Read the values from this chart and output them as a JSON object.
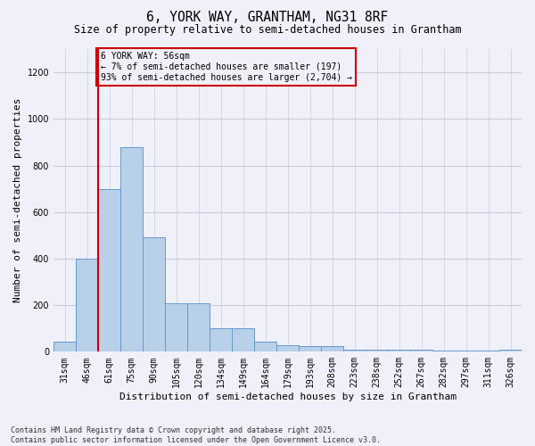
{
  "title": "6, YORK WAY, GRANTHAM, NG31 8RF",
  "subtitle": "Size of property relative to semi-detached houses in Grantham",
  "xlabel": "Distribution of semi-detached houses by size in Grantham",
  "ylabel": "Number of semi-detached properties",
  "footnote": "Contains HM Land Registry data © Crown copyright and database right 2025.\nContains public sector information licensed under the Open Government Licence v3.0.",
  "annotation_title": "6 YORK WAY: 56sqm",
  "annotation_line1": "← 7% of semi-detached houses are smaller (197)",
  "annotation_line2": "93% of semi-detached houses are larger (2,704) →",
  "bar_color": "#b8d0e8",
  "bar_edgecolor": "#6699cc",
  "vline_color": "#cc0000",
  "vline_x": 1.5,
  "categories": [
    "31sqm",
    "46sqm",
    "61sqm",
    "75sqm",
    "90sqm",
    "105sqm",
    "120sqm",
    "134sqm",
    "149sqm",
    "164sqm",
    "179sqm",
    "193sqm",
    "208sqm",
    "223sqm",
    "238sqm",
    "252sqm",
    "267sqm",
    "282sqm",
    "297sqm",
    "311sqm",
    "326sqm"
  ],
  "values": [
    45,
    400,
    700,
    880,
    490,
    210,
    210,
    100,
    100,
    45,
    30,
    25,
    25,
    10,
    10,
    10,
    10,
    5,
    5,
    5,
    10
  ],
  "ylim": [
    0,
    1300
  ],
  "yticks": [
    0,
    200,
    400,
    600,
    800,
    1000,
    1200
  ],
  "bg_color": "#f0f0fa",
  "grid_color": "#ccccdd",
  "title_fontsize": 10.5,
  "subtitle_fontsize": 8.5,
  "axis_label_fontsize": 8,
  "tick_fontsize": 7,
  "annotation_fontsize": 7,
  "footnote_fontsize": 6
}
